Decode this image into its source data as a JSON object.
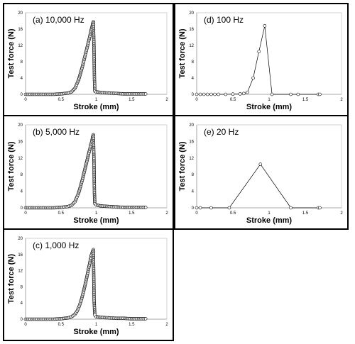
{
  "chart_data": [
    {
      "type": "scatter",
      "title": "(a) 10,000 Hz",
      "xlabel": "Stroke (mm)",
      "ylabel": "Test force (N)",
      "xlim": [
        0,
        2
      ],
      "ylim": [
        0,
        20
      ],
      "xticks": [
        "0",
        "0.5",
        "1",
        "1.5",
        "2"
      ],
      "yticks": [
        "0",
        "4",
        "8",
        "12",
        "16",
        "20"
      ],
      "grid": false,
      "series": [
        {
          "x": [
            0,
            0.1,
            0.2,
            0.3,
            0.4,
            0.5,
            0.6,
            0.65,
            0.7,
            0.75,
            0.8,
            0.85,
            0.9,
            0.93,
            0.95,
            0.96,
            0.97,
            0.975,
            0.98,
            1.0,
            1.05,
            1.1,
            1.2,
            1.3,
            1.4,
            1.5,
            1.6,
            1.7
          ],
          "y": [
            0,
            0,
            0,
            0,
            0,
            0.1,
            0.3,
            0.6,
            1.5,
            3.5,
            6.5,
            10.0,
            13.5,
            15.8,
            17.2,
            17.8,
            10.0,
            4.0,
            0.8,
            0.6,
            0.5,
            0.4,
            0.3,
            0.2,
            0.1,
            0.1,
            0.1,
            0.1
          ]
        }
      ]
    },
    {
      "type": "scatter",
      "title": "(b) 5,000 Hz",
      "xlabel": "Stroke (mm)",
      "ylabel": "Test force (N)",
      "xlim": [
        0,
        2
      ],
      "ylim": [
        0,
        20
      ],
      "xticks": [
        "0",
        "0.5",
        "1",
        "1.5",
        "2"
      ],
      "yticks": [
        "0",
        "4",
        "8",
        "12",
        "16",
        "20"
      ],
      "grid": false,
      "series": [
        {
          "x": [
            0,
            0.1,
            0.2,
            0.3,
            0.4,
            0.5,
            0.6,
            0.65,
            0.7,
            0.75,
            0.8,
            0.85,
            0.9,
            0.93,
            0.95,
            0.96,
            0.97,
            0.975,
            0.98,
            1.0,
            1.05,
            1.1,
            1.2,
            1.3,
            1.4,
            1.5,
            1.6,
            1.7
          ],
          "y": [
            0,
            0,
            0,
            0,
            0,
            0.1,
            0.3,
            0.6,
            1.5,
            3.5,
            6.5,
            10.0,
            13.5,
            15.5,
            17.0,
            17.6,
            10.0,
            3.5,
            1.0,
            0.7,
            0.5,
            0.4,
            0.3,
            0.2,
            0.1,
            0.1,
            0.1,
            0.1
          ]
        }
      ]
    },
    {
      "type": "scatter",
      "title": "(c) 1,000 Hz",
      "xlabel": "Stroke (mm)",
      "ylabel": "Test force (N)",
      "xlim": [
        0,
        2
      ],
      "ylim": [
        0,
        20
      ],
      "xticks": [
        "0",
        "0.5",
        "1",
        "1.5",
        "2"
      ],
      "yticks": [
        "0",
        "4",
        "8",
        "12",
        "16",
        "20"
      ],
      "grid": false,
      "series": [
        {
          "x": [
            0,
            0.1,
            0.2,
            0.3,
            0.4,
            0.5,
            0.6,
            0.65,
            0.7,
            0.73,
            0.76,
            0.79,
            0.82,
            0.85,
            0.88,
            0.91,
            0.93,
            0.95,
            0.96,
            0.97,
            0.98,
            1.0,
            1.05,
            1.1,
            1.2,
            1.3,
            1.4,
            1.5,
            1.6,
            1.7
          ],
          "y": [
            0,
            0,
            0,
            0,
            0,
            0.1,
            0.3,
            0.6,
            1.2,
            2.0,
            3.2,
            4.8,
            6.8,
            9.0,
            11.5,
            14.0,
            15.8,
            16.8,
            17.2,
            5.0,
            1.0,
            0.6,
            0.5,
            0.4,
            0.3,
            0.2,
            0.2,
            0.1,
            0.1,
            0.1
          ]
        }
      ]
    },
    {
      "type": "line",
      "title": "(d) 100 Hz",
      "xlabel": "Stroke (mm)",
      "ylabel": "Test force (N)",
      "xlim": [
        0,
        2
      ],
      "ylim": [
        0,
        20
      ],
      "xticks": [
        "0",
        "0.5",
        "1",
        "1.5",
        "2"
      ],
      "yticks": [
        "0",
        "4",
        "8",
        "12",
        "16",
        "20"
      ],
      "grid": false,
      "series": [
        {
          "x": [
            0,
            0.05,
            0.1,
            0.15,
            0.2,
            0.25,
            0.3,
            0.4,
            0.5,
            0.6,
            0.65,
            0.7,
            0.78,
            0.86,
            0.94,
            1.04,
            1.3,
            1.4,
            1.68,
            1.7
          ],
          "y": [
            0,
            0,
            0,
            0,
            0,
            0,
            0,
            0,
            0.05,
            0.1,
            0.2,
            0.5,
            4.0,
            10.5,
            16.8,
            0,
            0,
            0,
            0,
            0
          ]
        }
      ]
    },
    {
      "type": "line",
      "title": "(e) 20 Hz",
      "xlabel": "Stroke (mm)",
      "ylabel": "Test force (N)",
      "xlim": [
        0,
        2
      ],
      "ylim": [
        0,
        20
      ],
      "xticks": [
        "0",
        "0.5",
        "1",
        "1.5",
        "2"
      ],
      "yticks": [
        "0",
        "4",
        "8",
        "12",
        "16",
        "20"
      ],
      "grid": false,
      "series": [
        {
          "x": [
            0,
            0.05,
            0.2,
            0.45,
            0.88,
            1.3,
            1.68,
            1.7
          ],
          "y": [
            0,
            0,
            0,
            0,
            10.5,
            0,
            0,
            0
          ]
        }
      ]
    }
  ]
}
